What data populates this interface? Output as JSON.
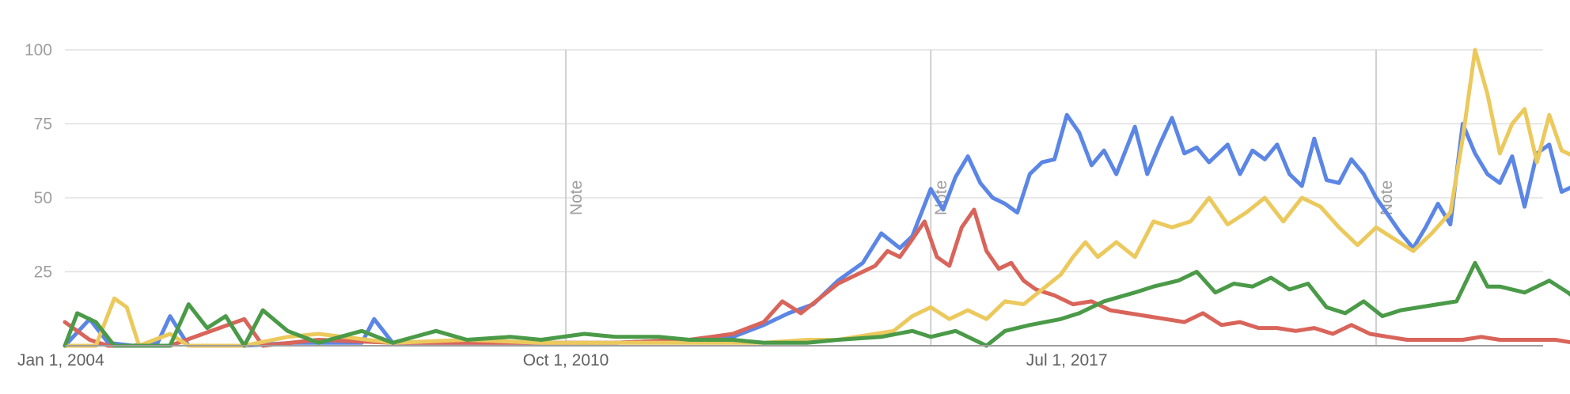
{
  "chart_data": {
    "type": "line",
    "x_start": "2004-01",
    "x_end": "2023-12",
    "ylim": [
      0,
      100
    ],
    "grid": true,
    "y_ticks": [
      25,
      50,
      75,
      100
    ],
    "x_ticks": [
      {
        "label": "Jan 1, 2004",
        "date": "2004-01"
      },
      {
        "label": "Oct 1, 2010",
        "date": "2010-10"
      },
      {
        "label": "Jul 1, 2017",
        "date": "2017-07"
      }
    ],
    "annotations": [
      {
        "label": "Note",
        "date": "2010-10"
      },
      {
        "label": "Note",
        "date": "2015-09"
      },
      {
        "label": "Note",
        "date": "2021-09"
      }
    ],
    "series": [
      {
        "color": "#5b86e5",
        "points": [
          [
            "2004-01",
            0
          ],
          [
            "2004-05",
            9
          ],
          [
            "2004-08",
            1
          ],
          [
            "2004-12",
            0
          ],
          [
            "2005-04",
            1
          ],
          [
            "2005-06",
            10
          ],
          [
            "2005-09",
            0
          ],
          [
            "2006-06",
            0
          ],
          [
            "2007-02",
            1
          ],
          [
            "2008-01",
            1
          ],
          [
            "2008-03",
            9
          ],
          [
            "2008-06",
            1
          ],
          [
            "2009-06",
            1
          ],
          [
            "2010-06",
            1
          ],
          [
            "2011-06",
            1
          ],
          [
            "2012-06",
            2
          ],
          [
            "2013-01",
            3
          ],
          [
            "2013-06",
            7
          ],
          [
            "2013-10",
            11
          ],
          [
            "2014-02",
            14
          ],
          [
            "2014-06",
            22
          ],
          [
            "2014-10",
            28
          ],
          [
            "2015-01",
            38
          ],
          [
            "2015-04",
            33
          ],
          [
            "2015-06",
            37
          ],
          [
            "2015-09",
            53
          ],
          [
            "2015-11",
            46
          ],
          [
            "2016-01",
            57
          ],
          [
            "2016-03",
            64
          ],
          [
            "2016-05",
            55
          ],
          [
            "2016-07",
            50
          ],
          [
            "2016-09",
            48
          ],
          [
            "2016-11",
            45
          ],
          [
            "2017-01",
            58
          ],
          [
            "2017-03",
            62
          ],
          [
            "2017-05",
            63
          ],
          [
            "2017-07",
            78
          ],
          [
            "2017-09",
            72
          ],
          [
            "2017-11",
            61
          ],
          [
            "2018-01",
            66
          ],
          [
            "2018-03",
            58
          ],
          [
            "2018-06",
            74
          ],
          [
            "2018-08",
            58
          ],
          [
            "2018-10",
            68
          ],
          [
            "2018-12",
            77
          ],
          [
            "2019-02",
            65
          ],
          [
            "2019-04",
            67
          ],
          [
            "2019-06",
            62
          ],
          [
            "2019-09",
            68
          ],
          [
            "2019-11",
            58
          ],
          [
            "2020-01",
            66
          ],
          [
            "2020-03",
            63
          ],
          [
            "2020-05",
            68
          ],
          [
            "2020-07",
            58
          ],
          [
            "2020-09",
            54
          ],
          [
            "2020-11",
            70
          ],
          [
            "2021-01",
            56
          ],
          [
            "2021-03",
            55
          ],
          [
            "2021-05",
            63
          ],
          [
            "2021-07",
            58
          ],
          [
            "2021-09",
            50
          ],
          [
            "2021-11",
            44
          ],
          [
            "2022-01",
            38
          ],
          [
            "2022-03",
            33
          ],
          [
            "2022-05",
            40
          ],
          [
            "2022-07",
            48
          ],
          [
            "2022-09",
            41
          ],
          [
            "2022-11",
            75
          ],
          [
            "2023-01",
            65
          ],
          [
            "2023-03",
            58
          ],
          [
            "2023-05",
            55
          ],
          [
            "2023-07",
            64
          ],
          [
            "2023-09",
            47
          ],
          [
            "2023-11",
            65
          ],
          [
            "2024-01",
            68
          ],
          [
            "2024-03",
            52
          ],
          [
            "2024-05",
            54
          ],
          [
            "2024-07",
            52
          ],
          [
            "2024-09",
            63
          ]
        ]
      },
      {
        "color": "#d9645a",
        "points": [
          [
            "2004-01",
            8
          ],
          [
            "2004-05",
            2
          ],
          [
            "2004-08",
            0
          ],
          [
            "2005-06",
            0
          ],
          [
            "2006-06",
            9
          ],
          [
            "2006-09",
            0
          ],
          [
            "2007-06",
            2
          ],
          [
            "2008-06",
            1
          ],
          [
            "2009-06",
            1
          ],
          [
            "2010-06",
            1
          ],
          [
            "2011-06",
            1
          ],
          [
            "2012-06",
            2
          ],
          [
            "2013-01",
            4
          ],
          [
            "2013-06",
            8
          ],
          [
            "2013-09",
            15
          ],
          [
            "2013-12",
            11
          ],
          [
            "2014-03",
            16
          ],
          [
            "2014-06",
            21
          ],
          [
            "2014-09",
            24
          ],
          [
            "2014-12",
            27
          ],
          [
            "2015-02",
            32
          ],
          [
            "2015-04",
            30
          ],
          [
            "2015-06",
            36
          ],
          [
            "2015-08",
            42
          ],
          [
            "2015-10",
            30
          ],
          [
            "2015-12",
            27
          ],
          [
            "2016-02",
            40
          ],
          [
            "2016-04",
            46
          ],
          [
            "2016-06",
            32
          ],
          [
            "2016-08",
            26
          ],
          [
            "2016-10",
            28
          ],
          [
            "2016-12",
            22
          ],
          [
            "2017-02",
            19
          ],
          [
            "2017-05",
            17
          ],
          [
            "2017-08",
            14
          ],
          [
            "2017-11",
            15
          ],
          [
            "2018-02",
            12
          ],
          [
            "2018-05",
            11
          ],
          [
            "2018-08",
            10
          ],
          [
            "2018-11",
            9
          ],
          [
            "2019-02",
            8
          ],
          [
            "2019-05",
            11
          ],
          [
            "2019-08",
            7
          ],
          [
            "2019-11",
            8
          ],
          [
            "2020-02",
            6
          ],
          [
            "2020-05",
            6
          ],
          [
            "2020-08",
            5
          ],
          [
            "2020-11",
            6
          ],
          [
            "2021-02",
            4
          ],
          [
            "2021-05",
            7
          ],
          [
            "2021-08",
            4
          ],
          [
            "2021-11",
            3
          ],
          [
            "2022-02",
            2
          ],
          [
            "2022-05",
            2
          ],
          [
            "2022-08",
            2
          ],
          [
            "2022-11",
            2
          ],
          [
            "2023-02",
            3
          ],
          [
            "2023-05",
            2
          ],
          [
            "2023-08",
            2
          ],
          [
            "2023-11",
            2
          ],
          [
            "2024-02",
            2
          ],
          [
            "2024-05",
            1
          ],
          [
            "2024-09",
            1
          ]
        ]
      },
      {
        "color": "#ecc95d",
        "points": [
          [
            "2004-01",
            0
          ],
          [
            "2004-06",
            0
          ],
          [
            "2004-09",
            16
          ],
          [
            "2004-11",
            13
          ],
          [
            "2005-01",
            0
          ],
          [
            "2005-06",
            4
          ],
          [
            "2005-09",
            0
          ],
          [
            "2006-06",
            0
          ],
          [
            "2007-01",
            3
          ],
          [
            "2007-06",
            4
          ],
          [
            "2008-06",
            1
          ],
          [
            "2009-06",
            2
          ],
          [
            "2010-06",
            1
          ],
          [
            "2011-06",
            1
          ],
          [
            "2012-06",
            1
          ],
          [
            "2013-06",
            1
          ],
          [
            "2014-01",
            2
          ],
          [
            "2014-06",
            2
          ],
          [
            "2014-12",
            4
          ],
          [
            "2015-03",
            5
          ],
          [
            "2015-06",
            10
          ],
          [
            "2015-09",
            13
          ],
          [
            "2015-12",
            9
          ],
          [
            "2016-03",
            12
          ],
          [
            "2016-06",
            9
          ],
          [
            "2016-09",
            15
          ],
          [
            "2016-12",
            14
          ],
          [
            "2017-03",
            19
          ],
          [
            "2017-06",
            24
          ],
          [
            "2017-08",
            30
          ],
          [
            "2017-10",
            35
          ],
          [
            "2017-12",
            30
          ],
          [
            "2018-03",
            35
          ],
          [
            "2018-06",
            30
          ],
          [
            "2018-09",
            42
          ],
          [
            "2018-12",
            40
          ],
          [
            "2019-03",
            42
          ],
          [
            "2019-06",
            50
          ],
          [
            "2019-09",
            41
          ],
          [
            "2019-12",
            45
          ],
          [
            "2020-03",
            50
          ],
          [
            "2020-06",
            42
          ],
          [
            "2020-09",
            50
          ],
          [
            "2020-12",
            47
          ],
          [
            "2021-03",
            40
          ],
          [
            "2021-06",
            34
          ],
          [
            "2021-09",
            40
          ],
          [
            "2021-12",
            36
          ],
          [
            "2022-03",
            32
          ],
          [
            "2022-06",
            38
          ],
          [
            "2022-09",
            45
          ],
          [
            "2022-11",
            70
          ],
          [
            "2023-01",
            100
          ],
          [
            "2023-03",
            85
          ],
          [
            "2023-05",
            65
          ],
          [
            "2023-07",
            75
          ],
          [
            "2023-09",
            80
          ],
          [
            "2023-11",
            62
          ],
          [
            "2024-01",
            78
          ],
          [
            "2024-03",
            66
          ],
          [
            "2024-05",
            64
          ],
          [
            "2024-07",
            62
          ],
          [
            "2024-09",
            66
          ]
        ]
      },
      {
        "color": "#4a9a48",
        "points": [
          [
            "2004-01",
            0
          ],
          [
            "2004-03",
            11
          ],
          [
            "2004-06",
            8
          ],
          [
            "2004-09",
            0
          ],
          [
            "2005-06",
            0
          ],
          [
            "2005-09",
            14
          ],
          [
            "2005-12",
            6
          ],
          [
            "2006-03",
            10
          ],
          [
            "2006-06",
            0
          ],
          [
            "2006-09",
            12
          ],
          [
            "2007-01",
            5
          ],
          [
            "2007-06",
            1
          ],
          [
            "2008-01",
            5
          ],
          [
            "2008-06",
            1
          ],
          [
            "2009-01",
            5
          ],
          [
            "2009-06",
            2
          ],
          [
            "2010-01",
            3
          ],
          [
            "2010-06",
            2
          ],
          [
            "2011-01",
            4
          ],
          [
            "2011-06",
            3
          ],
          [
            "2012-01",
            3
          ],
          [
            "2012-06",
            2
          ],
          [
            "2013-01",
            2
          ],
          [
            "2013-06",
            1
          ],
          [
            "2014-01",
            1
          ],
          [
            "2014-06",
            2
          ],
          [
            "2015-01",
            3
          ],
          [
            "2015-06",
            5
          ],
          [
            "2015-09",
            3
          ],
          [
            "2016-01",
            5
          ],
          [
            "2016-06",
            0
          ],
          [
            "2016-09",
            5
          ],
          [
            "2017-01",
            7
          ],
          [
            "2017-06",
            9
          ],
          [
            "2017-09",
            11
          ],
          [
            "2018-01",
            15
          ],
          [
            "2018-06",
            18
          ],
          [
            "2018-09",
            20
          ],
          [
            "2019-01",
            22
          ],
          [
            "2019-04",
            25
          ],
          [
            "2019-07",
            18
          ],
          [
            "2019-10",
            21
          ],
          [
            "2020-01",
            20
          ],
          [
            "2020-04",
            23
          ],
          [
            "2020-07",
            19
          ],
          [
            "2020-10",
            21
          ],
          [
            "2021-01",
            13
          ],
          [
            "2021-04",
            11
          ],
          [
            "2021-07",
            15
          ],
          [
            "2021-10",
            10
          ],
          [
            "2022-01",
            12
          ],
          [
            "2022-04",
            13
          ],
          [
            "2022-07",
            14
          ],
          [
            "2022-10",
            15
          ],
          [
            "2023-01",
            28
          ],
          [
            "2023-03",
            20
          ],
          [
            "2023-05",
            20
          ],
          [
            "2023-07",
            19
          ],
          [
            "2023-09",
            18
          ],
          [
            "2023-11",
            20
          ],
          [
            "2024-01",
            22
          ],
          [
            "2024-04",
            18
          ],
          [
            "2024-07",
            13
          ],
          [
            "2024-09",
            15
          ]
        ]
      }
    ]
  }
}
